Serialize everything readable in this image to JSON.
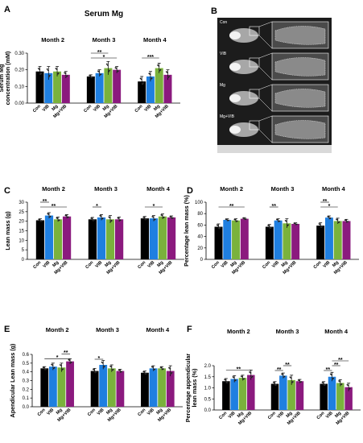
{
  "colors": {
    "Con": "#000000",
    "VIB": "#1f7fe0",
    "Mg": "#7ab23c",
    "Mg+VIB": "#8b1a7e"
  },
  "x_categories": [
    "Con",
    "VIB",
    "Mg",
    "Mg+VIB"
  ],
  "month_labels": [
    "Month 2",
    "Month 3",
    "Month 4"
  ],
  "panelB": {
    "letter": "B",
    "image_labels": [
      "Con",
      "VIB",
      "Mg",
      "Mg+VIB"
    ]
  },
  "chart_data": [
    {
      "id": "A",
      "letter": "A",
      "type": "bar",
      "title": "Serum Mg",
      "ylabel": [
        "Serum Mg",
        "concentration (mM)"
      ],
      "ylim": [
        0,
        0.3
      ],
      "yticks": [
        "0.00",
        "0.10",
        "0.20",
        "0.30"
      ],
      "series_values": [
        [
          0.19,
          0.18,
          0.19,
          0.17
        ],
        [
          0.16,
          0.18,
          0.21,
          0.2
        ],
        [
          0.13,
          0.16,
          0.21,
          0.17
        ]
      ],
      "errors": [
        [
          0.03,
          0.04,
          0.03,
          0.02
        ],
        [
          0.01,
          0.02,
          0.04,
          0.02
        ],
        [
          0.03,
          0.03,
          0.03,
          0.03
        ]
      ],
      "sig": [
        {
          "group": 1,
          "from": 0,
          "to": 3,
          "label": "*"
        },
        {
          "group": 1,
          "from": 0,
          "to": 2,
          "label": "**"
        },
        {
          "group": 2,
          "from": 0,
          "to": 2,
          "label": "***"
        }
      ]
    },
    {
      "id": "C",
      "letter": "C",
      "type": "bar",
      "title": "",
      "ylabel": [
        "Lean mass (g)"
      ],
      "ylim": [
        0,
        30
      ],
      "yticks": [
        "0",
        "5",
        "10",
        "15",
        "20",
        "25",
        "30"
      ],
      "series_values": [
        [
          20.5,
          23.0,
          21.0,
          22.5
        ],
        [
          21.0,
          22.0,
          21.0,
          21.0
        ],
        [
          21.5,
          21.5,
          22.5,
          22.0
        ]
      ],
      "errors": [
        [
          0.8,
          1.5,
          1.2,
          1.0
        ],
        [
          1.0,
          1.5,
          2.0,
          1.2
        ],
        [
          1.0,
          1.5,
          1.3,
          0.8
        ]
      ],
      "sig": [
        {
          "group": 0,
          "from": 0,
          "to": 3,
          "label": "**"
        },
        {
          "group": 0,
          "from": 0,
          "to": 1,
          "label": "**"
        },
        {
          "group": 1,
          "from": 0,
          "to": 1,
          "label": "*"
        },
        {
          "group": 2,
          "from": 0,
          "to": 2,
          "label": "*"
        }
      ]
    },
    {
      "id": "D",
      "letter": "D",
      "type": "bar",
      "title": "",
      "ylabel": [
        "Percentage lean mass (%)"
      ],
      "ylim": [
        0,
        100
      ],
      "yticks": [
        "0",
        "20",
        "40",
        "60",
        "80",
        "100"
      ],
      "series_values": [
        [
          57,
          69,
          68,
          71
        ],
        [
          57,
          68,
          63,
          62
        ],
        [
          59,
          73,
          67,
          67
        ]
      ],
      "errors": [
        [
          5,
          2,
          3,
          2
        ],
        [
          4,
          3,
          8,
          2
        ],
        [
          5,
          3,
          5,
          3
        ]
      ],
      "sig": [
        {
          "group": 0,
          "from": 0,
          "to": 3,
          "label": "**"
        },
        {
          "group": 1,
          "from": 0,
          "to": 1,
          "label": "**"
        },
        {
          "group": 2,
          "from": 0,
          "to": 2,
          "label": "*"
        },
        {
          "group": 2,
          "from": 0,
          "to": 1,
          "label": "**"
        }
      ]
    },
    {
      "id": "E",
      "letter": "E",
      "type": "bar",
      "title": "",
      "ylabel": [
        "Apendicular Lean mass (g)"
      ],
      "ylim": [
        0,
        0.6
      ],
      "yticks": [
        "0.0",
        "0.1",
        "0.2",
        "0.3",
        "0.4",
        "0.5",
        "0.6"
      ],
      "series_values": [
        [
          0.44,
          0.46,
          0.45,
          0.52
        ],
        [
          0.41,
          0.48,
          0.44,
          0.41
        ],
        [
          0.39,
          0.44,
          0.44,
          0.41
        ]
      ],
      "errors": [
        [
          0.02,
          0.04,
          0.05,
          0.03
        ],
        [
          0.03,
          0.05,
          0.04,
          0.02
        ],
        [
          0.02,
          0.03,
          0.02,
          0.06
        ]
      ],
      "sig": [
        {
          "group": 0,
          "from": 0,
          "to": 3,
          "label": "*"
        },
        {
          "group": 0,
          "from": 2,
          "to": 3,
          "label": "**"
        },
        {
          "group": 1,
          "from": 0,
          "to": 1,
          "label": "*"
        }
      ]
    },
    {
      "id": "F",
      "letter": "F",
      "type": "bar",
      "title": "",
      "ylabel": [
        "Percentage appendicular",
        "lean mass (%)"
      ],
      "ylim": [
        0,
        2.0
      ],
      "yticks": [
        "0.0",
        "0.5",
        "1.0",
        "1.5",
        "2.0"
      ],
      "series_values": [
        [
          1.3,
          1.4,
          1.45,
          1.58
        ],
        [
          1.18,
          1.55,
          1.35,
          1.3
        ],
        [
          1.18,
          1.5,
          1.22,
          1.03
        ]
      ],
      "errors": [
        [
          0.12,
          0.15,
          0.12,
          0.22
        ],
        [
          0.1,
          0.12,
          0.22,
          0.08
        ],
        [
          0.1,
          0.2,
          0.15,
          0.18
        ]
      ],
      "sig": [
        {
          "group": 0,
          "from": 0,
          "to": 3,
          "label": "**"
        },
        {
          "group": 1,
          "from": 0,
          "to": 1,
          "label": "**"
        },
        {
          "group": 1,
          "from": 1,
          "to": 2,
          "label": "**"
        },
        {
          "group": 2,
          "from": 0,
          "to": 1,
          "label": "**"
        },
        {
          "group": 2,
          "from": 1,
          "to": 2,
          "label": "**"
        },
        {
          "group": 2,
          "from": 1,
          "to": 3,
          "label": "**"
        }
      ]
    }
  ]
}
